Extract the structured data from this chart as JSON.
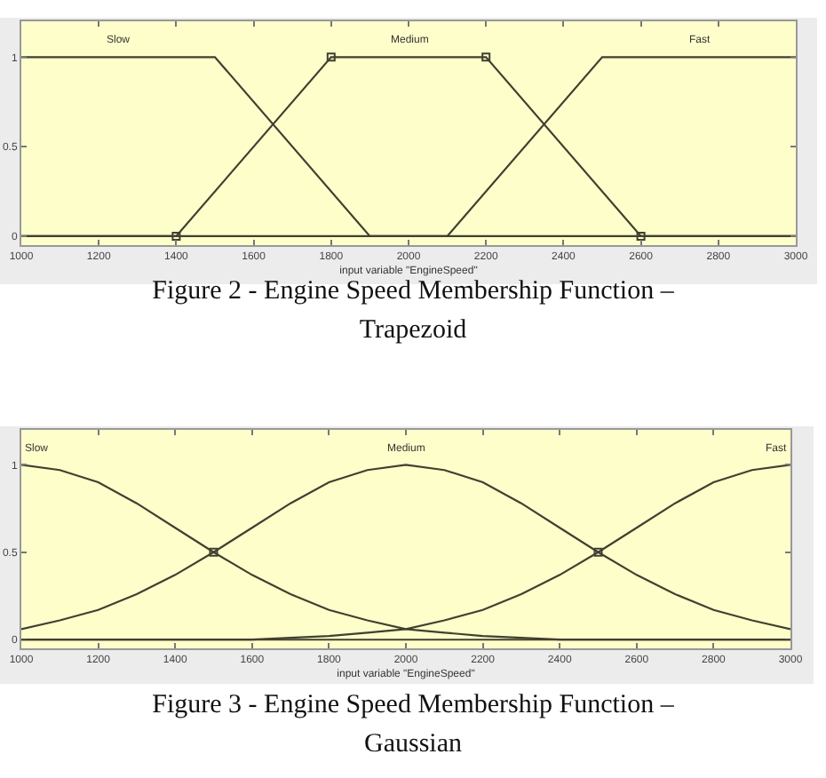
{
  "chart_data": [
    {
      "type": "line",
      "xlabel": "input variable \"EngineSpeed\"",
      "xlim": [
        1000,
        3000
      ],
      "xticks": [
        1000,
        1200,
        1400,
        1600,
        1800,
        2000,
        2200,
        2400,
        2600,
        2800,
        3000
      ],
      "ylim": [
        -0.05,
        1.2
      ],
      "yticks": [
        0,
        0.5,
        1
      ],
      "series": [
        {
          "name": "Slow",
          "color": "#404030",
          "x": [
            1000,
            1500,
            1900,
            3000
          ],
          "values": [
            1,
            1,
            0,
            0
          ]
        },
        {
          "name": "Medium",
          "color": "#404030",
          "x": [
            1000,
            1400,
            1800,
            2200,
            2600,
            3000
          ],
          "values": [
            0,
            0,
            1,
            1,
            0,
            0
          ]
        },
        {
          "name": "Fast",
          "color": "#404030",
          "x": [
            1000,
            2100,
            2500,
            3000
          ],
          "values": [
            0,
            0,
            1,
            1
          ]
        },
        {
          "type": "scatter",
          "marker": "square",
          "color": "#404030",
          "x": [
            1400,
            1800,
            2200,
            2600
          ],
          "values": [
            0,
            1,
            1,
            0
          ]
        }
      ],
      "annotations": [
        "Figure 2 - Engine Speed Membership Function – Trapezoid"
      ]
    },
    {
      "type": "line",
      "xlabel": "input variable \"EngineSpeed\"",
      "xlim": [
        1000,
        3000
      ],
      "xticks": [
        1000,
        1200,
        1400,
        1600,
        1800,
        2000,
        2200,
        2400,
        2600,
        2800,
        3000
      ],
      "ylim": [
        -0.05,
        1.2
      ],
      "yticks": [
        0,
        0.5,
        1
      ],
      "series": [
        {
          "name": "Slow",
          "color": "#404030",
          "x": [
            1000,
            1100,
            1200,
            1300,
            1400,
            1500,
            1600,
            1700,
            1800,
            1900,
            2000,
            2100,
            2200,
            2300,
            2400,
            2500,
            2600,
            2700,
            2800,
            2900,
            3000
          ],
          "values": [
            1,
            0.97,
            0.9,
            0.78,
            0.64,
            0.5,
            0.37,
            0.26,
            0.17,
            0.11,
            0.06,
            0.04,
            0.02,
            0.01,
            0,
            0,
            0,
            0,
            0,
            0,
            0
          ]
        },
        {
          "name": "Medium",
          "color": "#404030",
          "x": [
            1000,
            1100,
            1200,
            1300,
            1400,
            1500,
            1600,
            1700,
            1800,
            1900,
            2000,
            2100,
            2200,
            2300,
            2400,
            2500,
            2600,
            2700,
            2800,
            2900,
            3000
          ],
          "values": [
            0.06,
            0.11,
            0.17,
            0.26,
            0.37,
            0.5,
            0.64,
            0.78,
            0.9,
            0.97,
            1,
            0.97,
            0.9,
            0.78,
            0.64,
            0.5,
            0.37,
            0.26,
            0.17,
            0.11,
            0.06
          ]
        },
        {
          "name": "Fast",
          "color": "#404030",
          "x": [
            1000,
            1100,
            1200,
            1300,
            1400,
            1500,
            1600,
            1700,
            1800,
            1900,
            2000,
            2100,
            2200,
            2300,
            2400,
            2500,
            2600,
            2700,
            2800,
            2900,
            3000
          ],
          "values": [
            0,
            0,
            0,
            0,
            0,
            0,
            0,
            0.01,
            0.02,
            0.04,
            0.06,
            0.11,
            0.17,
            0.26,
            0.37,
            0.5,
            0.64,
            0.78,
            0.9,
            0.97,
            1
          ]
        },
        {
          "type": "scatter",
          "marker": "square",
          "color": "#404030",
          "x": [
            1500,
            2500
          ],
          "values": [
            0.5,
            0.5
          ]
        }
      ],
      "ref_lines": [
        {
          "axis": "y",
          "value": 0,
          "color": "#404030"
        }
      ],
      "annotations": [
        "Figure 3 - Engine Speed Membership Function – Gaussian"
      ]
    }
  ]
}
